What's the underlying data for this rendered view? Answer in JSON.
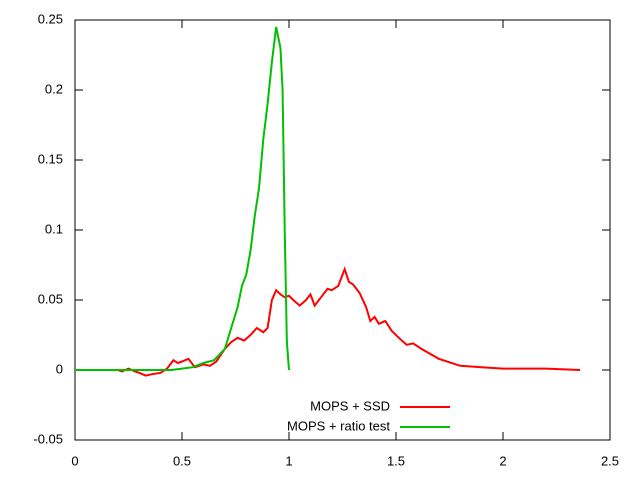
{
  "chart_data": {
    "type": "line",
    "xlim": [
      0,
      2.5
    ],
    "xticks": [
      0,
      0.5,
      1,
      1.5,
      2,
      2.5
    ],
    "ylim": [
      -0.05,
      0.25
    ],
    "yticks": [
      -0.05,
      0,
      0.05,
      0.1,
      0.15,
      0.2,
      0.25
    ],
    "grid": false,
    "legend": "bottom",
    "series": [
      {
        "name": "MOPS + SSD",
        "color": "#ff0000",
        "x": [
          0,
          0.2,
          0.22,
          0.25,
          0.28,
          0.3,
          0.33,
          0.36,
          0.4,
          0.43,
          0.46,
          0.48,
          0.5,
          0.53,
          0.56,
          0.6,
          0.63,
          0.66,
          0.7,
          0.73,
          0.76,
          0.79,
          0.82,
          0.85,
          0.88,
          0.9,
          0.92,
          0.94,
          0.96,
          0.98,
          1.0,
          1.02,
          1.05,
          1.08,
          1.1,
          1.12,
          1.15,
          1.18,
          1.2,
          1.23,
          1.26,
          1.28,
          1.3,
          1.33,
          1.36,
          1.38,
          1.4,
          1.42,
          1.45,
          1.48,
          1.52,
          1.55,
          1.58,
          1.62,
          1.7,
          1.8,
          1.9,
          2.0,
          2.2,
          2.36
        ],
        "values": [
          0,
          0,
          -0.001,
          0.001,
          -0.001,
          -0.002,
          -0.004,
          -0.003,
          -0.002,
          0.001,
          0.007,
          0.005,
          0.006,
          0.008,
          0.002,
          0.004,
          0.003,
          0.006,
          0.015,
          0.02,
          0.023,
          0.021,
          0.025,
          0.03,
          0.027,
          0.03,
          0.05,
          0.057,
          0.054,
          0.052,
          0.053,
          0.05,
          0.046,
          0.05,
          0.054,
          0.046,
          0.052,
          0.058,
          0.057,
          0.06,
          0.072,
          0.063,
          0.061,
          0.055,
          0.045,
          0.035,
          0.038,
          0.033,
          0.035,
          0.028,
          0.022,
          0.018,
          0.019,
          0.015,
          0.008,
          0.003,
          0.002,
          0.001,
          0.001,
          0
        ]
      },
      {
        "name": "MOPS + ratio test",
        "color": "#00c000",
        "x": [
          0,
          0.45,
          0.5,
          0.55,
          0.6,
          0.65,
          0.7,
          0.73,
          0.76,
          0.78,
          0.8,
          0.82,
          0.84,
          0.86,
          0.88,
          0.9,
          0.92,
          0.94,
          0.96,
          0.97,
          0.98,
          0.99,
          1.0
        ],
        "values": [
          0,
          0,
          0.001,
          0.002,
          0.005,
          0.007,
          0.015,
          0.03,
          0.045,
          0.06,
          0.068,
          0.085,
          0.11,
          0.13,
          0.165,
          0.19,
          0.22,
          0.245,
          0.23,
          0.2,
          0.1,
          0.02,
          0
        ]
      }
    ]
  }
}
